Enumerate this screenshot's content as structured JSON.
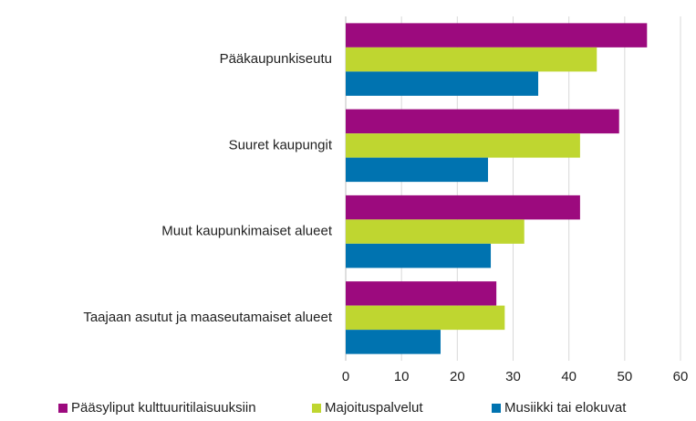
{
  "chart_data": {
    "type": "barh",
    "categories": [
      "Pääkaupunkiseutu",
      "Suuret kaupungit",
      "Muut kaupunkimaiset alueet",
      "Taajaan asutut ja maaseutamaiset alueet"
    ],
    "series": [
      {
        "name": "Pääsyliput kulttuuritilaisuuksiin",
        "color": "#9c0a7e",
        "values": [
          54,
          49,
          42,
          27
        ]
      },
      {
        "name": "Majoituspalvelut",
        "color": "#bfd630",
        "values": [
          45,
          42,
          32,
          28.5
        ]
      },
      {
        "name": "Musiikki tai elokuvat",
        "color": "#0073b0",
        "values": [
          34.5,
          25.5,
          26,
          17
        ]
      }
    ],
    "xlim": [
      0,
      60
    ],
    "xticks": [
      0,
      10,
      20,
      30,
      40,
      50,
      60
    ],
    "grid": true,
    "legend": "bottom"
  }
}
